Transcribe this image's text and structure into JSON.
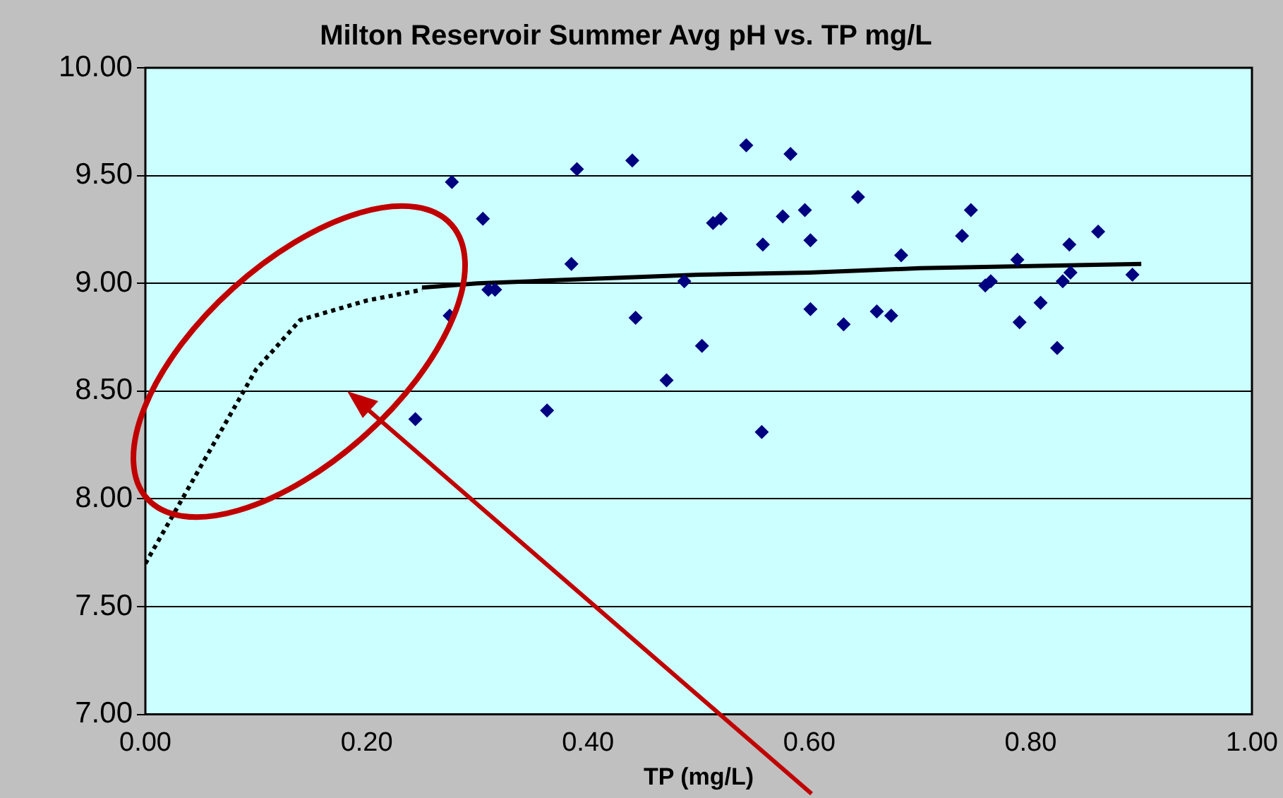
{
  "chart_data": {
    "type": "scatter",
    "title": "Milton Reservoir Summer Avg pH vs. TP mg/L",
    "xlabel": "TP (mg/L)",
    "xlim": [
      0,
      1
    ],
    "xticks": [
      {
        "value": 0,
        "label": "0.00"
      },
      {
        "value": 0.2,
        "label": "0.20"
      },
      {
        "value": 0.4,
        "label": "0.40"
      },
      {
        "value": 0.6,
        "label": "0.60"
      },
      {
        "value": 0.8,
        "label": "0.80"
      },
      {
        "value": 1,
        "label": "1.00"
      }
    ],
    "ylim": [
      7,
      10
    ],
    "yticks": [
      {
        "value": 7,
        "label": "7.00"
      },
      {
        "value": 7.5,
        "label": "7.50"
      },
      {
        "value": 8,
        "label": "8.00"
      },
      {
        "value": 8.5,
        "label": "8.50"
      },
      {
        "value": 9,
        "label": "9.00"
      },
      {
        "value": 9.5,
        "label": "9.50"
      },
      {
        "value": 10,
        "label": "10.00"
      }
    ],
    "grid": "y",
    "legend": false,
    "series": [
      {
        "type": "scatter",
        "marker": "diamond",
        "color": "#000080",
        "x": [
          0.244,
          0.277,
          0.275,
          0.305,
          0.31,
          0.316,
          0.363,
          0.385,
          0.39,
          0.44,
          0.443,
          0.471,
          0.487,
          0.503,
          0.513,
          0.52,
          0.543,
          0.557,
          0.558,
          0.576,
          0.583,
          0.596,
          0.601,
          0.601,
          0.644,
          0.631,
          0.661,
          0.674,
          0.683,
          0.738,
          0.746,
          0.759,
          0.764,
          0.788,
          0.79,
          0.809,
          0.824,
          0.829,
          0.835,
          0.836,
          0.861,
          0.892
        ],
        "values": [
          8.37,
          9.47,
          8.85,
          9.3,
          8.97,
          8.97,
          8.41,
          9.09,
          9.53,
          9.57,
          8.84,
          8.55,
          9.01,
          8.71,
          9.28,
          9.3,
          9.64,
          8.31,
          9.18,
          9.31,
          9.6,
          9.34,
          9.2,
          8.88,
          9.4,
          8.81,
          8.87,
          8.85,
          9.13,
          9.22,
          9.34,
          8.99,
          9.01,
          9.11,
          8.82,
          8.91,
          8.7,
          9.01,
          9.18,
          9.05,
          9.24,
          9.04
        ]
      },
      {
        "type": "line",
        "marker": "none",
        "line_style": "solid",
        "color": "#000000",
        "x": [
          0.25,
          0.3,
          0.35,
          0.4,
          0.5,
          0.6,
          0.7,
          0.8,
          0.9
        ],
        "values": [
          8.98,
          9.0,
          9.01,
          9.02,
          9.04,
          9.05,
          9.07,
          9.08,
          9.09
        ]
      },
      {
        "type": "line",
        "marker": "none",
        "line_style": "dotted",
        "color": "#000000",
        "x": [
          0,
          0.05,
          0.1,
          0.14,
          0.2,
          0.25
        ],
        "values": [
          7.7,
          8.15,
          8.6,
          8.83,
          8.92,
          8.97
        ]
      }
    ]
  }
}
